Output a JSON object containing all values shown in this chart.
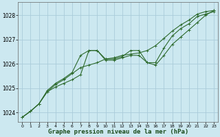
{
  "title": "Graphe pression niveau de la mer (hPa)",
  "bg_color": "#cce8f0",
  "grid_color": "#aaccda",
  "line_color": "#2d6a2d",
  "marker_color": "#2d6a2d",
  "xlim": [
    -0.5,
    23.5
  ],
  "ylim": [
    1023.6,
    1028.55
  ],
  "yticks": [
    1024,
    1025,
    1026,
    1027,
    1028
  ],
  "xticks": [
    0,
    1,
    2,
    3,
    4,
    5,
    6,
    7,
    8,
    9,
    10,
    11,
    12,
    13,
    14,
    15,
    16,
    17,
    18,
    19,
    20,
    21,
    22,
    23
  ],
  "xlabel_fontsize": 6.5,
  "series": [
    [
      1023.8,
      1024.05,
      1024.35,
      1024.85,
      1025.05,
      1025.2,
      1025.35,
      1025.55,
      1026.55,
      1026.55,
      1026.15,
      1026.15,
      1026.25,
      1026.35,
      1026.35,
      1026.05,
      1026.05,
      1026.65,
      1027.15,
      1027.45,
      1027.65,
      1027.95,
      1028.05,
      1028.15
    ],
    [
      1023.8,
      1024.05,
      1024.35,
      1024.85,
      1025.15,
      1025.35,
      1025.6,
      1025.85,
      1025.95,
      1026.05,
      1026.2,
      1026.25,
      1026.35,
      1026.4,
      1026.45,
      1026.55,
      1026.75,
      1027.05,
      1027.35,
      1027.6,
      1027.8,
      1028.05,
      1028.15,
      1028.2
    ],
    [
      1023.8,
      1024.05,
      1024.35,
      1024.9,
      1025.2,
      1025.4,
      1025.65,
      1026.35,
      1026.55,
      1026.55,
      1026.2,
      1026.2,
      1026.3,
      1026.55,
      1026.55,
      1026.05,
      1025.95,
      1026.35,
      1026.8,
      1027.1,
      1027.4,
      1027.7,
      1028.0,
      1028.2
    ]
  ]
}
